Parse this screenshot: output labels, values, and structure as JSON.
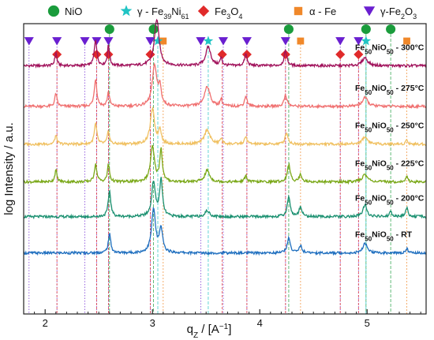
{
  "chart_data": {
    "type": "line",
    "xlabel": "q",
    "xlabel_sub": "Z",
    "xlabel_unit": " / [A",
    "xlabel_unit_sup": "−1",
    "xlabel_unit_end": "]",
    "ylabel": "log Intensity / a.u.",
    "xlim": [
      1.8,
      5.55
    ],
    "ylim": [
      0,
      100
    ],
    "x_ticks": [
      2,
      3,
      4,
      5
    ],
    "x_tick_labels": [
      "2",
      "3",
      "4",
      "5"
    ],
    "legend": [
      {
        "name": "NiO",
        "marker": "circle",
        "color": "#1a9c3c"
      },
      {
        "name": "γ - Fe",
        "sub1": "39",
        "mid": "Ni",
        "sub2": "61",
        "marker": "star",
        "color": "#20c4c4"
      },
      {
        "name": "Fe",
        "sub1": "3",
        "mid": "O",
        "sub2": "4",
        "marker": "diamond",
        "color": "#e02a2a"
      },
      {
        "name": "α - Fe",
        "marker": "square",
        "color": "#f0882a"
      },
      {
        "name": "γ-Fe",
        "sub1": "2",
        "mid": "O",
        "sub2": "3",
        "marker": "triangle",
        "color": "#6a1fd0"
      }
    ],
    "reference_peaks": {
      "NiO": {
        "color": "#1a9c3c",
        "x": [
          2.6,
          3.01,
          4.27,
          4.99,
          5.22
        ]
      },
      "gamma_FeNi": {
        "color": "#20c4c4",
        "x": [
          3.05,
          3.52,
          4.99
        ]
      },
      "Fe3O4": {
        "color": "#e02a2a",
        "x": [
          2.11,
          2.48,
          2.59,
          2.98,
          3.65,
          3.88,
          4.24,
          4.75,
          4.92
        ]
      },
      "alpha_Fe": {
        "color": "#f0882a",
        "x": [
          3.1,
          4.38,
          5.37
        ]
      },
      "gamma_Fe2O3": {
        "color": "#6a1fd0",
        "x": [
          1.85,
          2.11,
          2.37,
          2.48,
          2.59,
          2.98,
          3.45,
          3.66,
          3.88,
          4.24,
          4.75,
          4.92
        ]
      }
    },
    "series": [
      {
        "name": "Fe",
        "sub": "50",
        "name2": "NiO",
        "sub2": "50",
        "suffix": " - 300°C",
        "color": "#a0105a",
        "baseline": 85.5,
        "peaks": [
          {
            "x": 2.1,
            "h": 4.5,
            "w": 0.012
          },
          {
            "x": 2.47,
            "h": 9,
            "w": 0.014
          },
          {
            "x": 2.59,
            "h": 7,
            "w": 0.012
          },
          {
            "x": 3.04,
            "h": 16,
            "w": 0.026
          },
          {
            "x": 3.52,
            "h": 6.5,
            "w": 0.028
          },
          {
            "x": 3.64,
            "h": 2.5,
            "w": 0.012
          },
          {
            "x": 3.87,
            "h": 4,
            "w": 0.014
          },
          {
            "x": 4.24,
            "h": 5,
            "w": 0.016
          },
          {
            "x": 4.98,
            "h": 2.8,
            "w": 0.03
          }
        ]
      },
      {
        "name": "Fe",
        "sub": "50",
        "name2": "NiO",
        "sub2": "50",
        "suffix": " - 275°C",
        "color": "#f07070",
        "baseline": 71.5,
        "peaks": [
          {
            "x": 2.1,
            "h": 4.5,
            "w": 0.012
          },
          {
            "x": 2.47,
            "h": 9.5,
            "w": 0.014
          },
          {
            "x": 2.59,
            "h": 5,
            "w": 0.012
          },
          {
            "x": 3.02,
            "h": 14,
            "w": 0.026
          },
          {
            "x": 3.07,
            "h": 6,
            "w": 0.014
          },
          {
            "x": 3.51,
            "h": 7,
            "w": 0.03
          },
          {
            "x": 3.64,
            "h": 2.5,
            "w": 0.012
          },
          {
            "x": 3.87,
            "h": 3.5,
            "w": 0.014
          },
          {
            "x": 4.24,
            "h": 4,
            "w": 0.016
          },
          {
            "x": 4.98,
            "h": 3,
            "w": 0.03
          }
        ]
      },
      {
        "name": "Fe",
        "sub": "50",
        "name2": "NiO",
        "sub2": "50",
        "suffix": " - 250°C",
        "color": "#f0c060",
        "baseline": 58.5,
        "peaks": [
          {
            "x": 2.1,
            "h": 3,
            "w": 0.012
          },
          {
            "x": 2.47,
            "h": 7,
            "w": 0.014
          },
          {
            "x": 2.59,
            "h": 4.5,
            "w": 0.012
          },
          {
            "x": 3.0,
            "h": 12,
            "w": 0.024
          },
          {
            "x": 3.07,
            "h": 5,
            "w": 0.014
          },
          {
            "x": 3.51,
            "h": 5,
            "w": 0.03
          },
          {
            "x": 3.64,
            "h": 2,
            "w": 0.012
          },
          {
            "x": 3.87,
            "h": 2.5,
            "w": 0.014
          },
          {
            "x": 4.25,
            "h": 4,
            "w": 0.016
          },
          {
            "x": 4.98,
            "h": 2.5,
            "w": 0.03
          },
          {
            "x": 5.37,
            "h": 1.5,
            "w": 0.012
          }
        ]
      },
      {
        "name": "Fe",
        "sub": "50",
        "name2": "NiO",
        "sub2": "50",
        "suffix": " - 225°C",
        "color": "#7aa818",
        "baseline": 45.5,
        "peaks": [
          {
            "x": 2.1,
            "h": 4,
            "w": 0.012
          },
          {
            "x": 2.47,
            "h": 6,
            "w": 0.014
          },
          {
            "x": 2.59,
            "h": 6,
            "w": 0.012
          },
          {
            "x": 3.0,
            "h": 12,
            "w": 0.022
          },
          {
            "x": 3.08,
            "h": 11,
            "w": 0.014
          },
          {
            "x": 3.51,
            "h": 4,
            "w": 0.026
          },
          {
            "x": 3.87,
            "h": 2,
            "w": 0.014
          },
          {
            "x": 4.27,
            "h": 6,
            "w": 0.016
          },
          {
            "x": 4.38,
            "h": 2.5,
            "w": 0.016
          },
          {
            "x": 4.98,
            "h": 2.5,
            "w": 0.03
          },
          {
            "x": 5.37,
            "h": 1.8,
            "w": 0.012
          }
        ]
      },
      {
        "name": "Fe",
        "sub": "50",
        "name2": "NiO",
        "sub2": "50",
        "suffix": " - 200°C",
        "color": "#1a9070",
        "baseline": 33.5,
        "peaks": [
          {
            "x": 2.6,
            "h": 9,
            "w": 0.014
          },
          {
            "x": 3.01,
            "h": 12,
            "w": 0.02
          },
          {
            "x": 3.08,
            "h": 12.5,
            "w": 0.016
          },
          {
            "x": 3.51,
            "h": 2,
            "w": 0.026
          },
          {
            "x": 4.27,
            "h": 7,
            "w": 0.016
          },
          {
            "x": 4.38,
            "h": 3.5,
            "w": 0.016
          },
          {
            "x": 4.98,
            "h": 4,
            "w": 0.022
          },
          {
            "x": 5.22,
            "h": 1.5,
            "w": 0.016
          },
          {
            "x": 5.37,
            "h": 3,
            "w": 0.014
          }
        ]
      },
      {
        "name": "Fe",
        "sub": "50",
        "name2": "NiO",
        "sub2": "50",
        "suffix": " - RT",
        "color": "#1f6fbf",
        "baseline": 21,
        "peaks": [
          {
            "x": 2.6,
            "h": 6.5,
            "w": 0.014
          },
          {
            "x": 3.01,
            "h": 15,
            "w": 0.022
          },
          {
            "x": 3.08,
            "h": 8,
            "w": 0.018
          },
          {
            "x": 4.27,
            "h": 5,
            "w": 0.018
          },
          {
            "x": 4.38,
            "h": 2.5,
            "w": 0.016
          },
          {
            "x": 4.98,
            "h": 3.5,
            "w": 0.022
          },
          {
            "x": 5.37,
            "h": 1.5,
            "w": 0.014
          }
        ]
      }
    ]
  }
}
